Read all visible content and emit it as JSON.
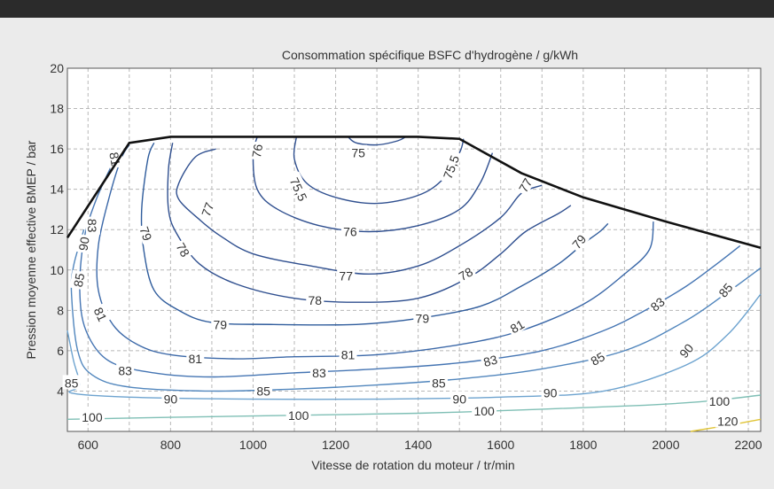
{
  "chart_data": {
    "type": "contour",
    "title": "Consommation spécifique BSFC d'hydrogène / g/kWh",
    "xlabel": "Vitesse de rotation du moteur / tr/min",
    "ylabel": "Pression moyenne effective BMEP / bar",
    "xlim": [
      550,
      2230
    ],
    "ylim": [
      2,
      20
    ],
    "x_ticks": [
      600,
      800,
      1000,
      1200,
      1400,
      1600,
      1800,
      2000,
      2200
    ],
    "y_ticks": [
      4,
      6,
      8,
      10,
      12,
      14,
      16,
      18,
      20
    ],
    "grid": true,
    "full_load_curve": [
      [
        550,
        11.6
      ],
      [
        700,
        16.3
      ],
      [
        800,
        16.6
      ],
      [
        1400,
        16.6
      ],
      [
        1500,
        16.5
      ],
      [
        1650,
        14.8
      ],
      [
        1800,
        13.6
      ],
      [
        2000,
        12.4
      ],
      [
        2230,
        11.1
      ]
    ],
    "contours": [
      {
        "value": "75",
        "label": "75",
        "color": "#2f4f8f",
        "points": [
          [
            1230,
            16.6
          ],
          [
            1250,
            16.3
          ],
          [
            1300,
            16.2
          ],
          [
            1350,
            16.4
          ],
          [
            1370,
            16.6
          ]
        ],
        "label_at": [
          1255,
          15.8
        ],
        "label_angle": 0
      },
      {
        "value": "75.5",
        "label": "75,5",
        "color": "#2f4f8f",
        "points": [
          [
            1105,
            16.6
          ],
          [
            1100,
            15.5
          ],
          [
            1130,
            14.3
          ],
          [
            1200,
            13.6
          ],
          [
            1300,
            13.3
          ],
          [
            1400,
            13.7
          ],
          [
            1460,
            14.5
          ],
          [
            1500,
            15.8
          ],
          [
            1510,
            16.5
          ]
        ],
        "label_at": [
          1110,
          14.0
        ],
        "label_angle": 65,
        "label2_at": [
          1480,
          15.1
        ],
        "label2_angle": -70
      },
      {
        "value": "76",
        "label": "76",
        "color": "#2f4f8f",
        "points": [
          [
            1010,
            16.6
          ],
          [
            1000,
            15.7
          ],
          [
            1010,
            14.0
          ],
          [
            1060,
            13.0
          ],
          [
            1160,
            12.2
          ],
          [
            1280,
            11.9
          ],
          [
            1400,
            12.2
          ],
          [
            1500,
            13.0
          ],
          [
            1550,
            14.3
          ],
          [
            1580,
            15.8
          ]
        ],
        "label_at": [
          1010,
          15.9
        ],
        "label_angle": -80,
        "label2_at": [
          1235,
          11.9
        ],
        "label2_angle": 0
      },
      {
        "value": "77",
        "label": "77",
        "color": "#2f4f8f",
        "points": [
          [
            910,
            16.0
          ],
          [
            860,
            15.6
          ],
          [
            820,
            14.3
          ],
          [
            820,
            13.5
          ],
          [
            870,
            12.5
          ],
          [
            920,
            11.7
          ],
          [
            1000,
            10.8
          ],
          [
            1140,
            10.2
          ],
          [
            1280,
            9.8
          ],
          [
            1400,
            10.2
          ],
          [
            1500,
            11.2
          ],
          [
            1600,
            12.6
          ],
          [
            1650,
            13.8
          ],
          [
            1700,
            14.2
          ]
        ],
        "label_at": [
          890,
          13.0
        ],
        "label_angle": -70,
        "label2_at": [
          1225,
          9.7
        ],
        "label2_angle": 0,
        "label3_at": [
          1660,
          14.2
        ],
        "label3_angle": -60
      },
      {
        "value": "78",
        "label": "78",
        "color": "#2f4f8f",
        "points": [
          [
            805,
            16.3
          ],
          [
            795,
            15.0
          ],
          [
            795,
            13.0
          ],
          [
            815,
            11.8
          ],
          [
            870,
            10.3
          ],
          [
            960,
            9.3
          ],
          [
            1100,
            8.6
          ],
          [
            1250,
            8.4
          ],
          [
            1400,
            8.6
          ],
          [
            1520,
            9.6
          ],
          [
            1600,
            10.8
          ],
          [
            1660,
            11.9
          ],
          [
            1740,
            12.8
          ],
          [
            1770,
            13.2
          ]
        ],
        "label_at": [
          830,
          11.0
        ],
        "label_angle": 60,
        "label2_at": [
          1150,
          8.5
        ],
        "label2_angle": 0,
        "label3_at": [
          1515,
          9.8
        ],
        "label3_angle": -30
      },
      {
        "value": "79",
        "label": "79",
        "color": "#2f5c9c",
        "points": [
          [
            760,
            16.3
          ],
          [
            745,
            15.5
          ],
          [
            730,
            13.0
          ],
          [
            735,
            11.0
          ],
          [
            760,
            9.0
          ],
          [
            820,
            8.0
          ],
          [
            900,
            7.4
          ],
          [
            1050,
            7.3
          ],
          [
            1250,
            7.3
          ],
          [
            1400,
            7.6
          ],
          [
            1550,
            8.2
          ],
          [
            1650,
            9.2
          ],
          [
            1740,
            10.3
          ],
          [
            1800,
            11.3
          ],
          [
            1840,
            11.9
          ],
          [
            1860,
            12.3
          ]
        ],
        "label_at": [
          740,
          11.8
        ],
        "label_angle": 70,
        "label2_at": [
          920,
          7.3
        ],
        "label2_angle": 0,
        "label3_at": [
          1410,
          7.6
        ],
        "label3_angle": 0,
        "label4_at": [
          1790,
          11.4
        ],
        "label4_angle": -50
      },
      {
        "value": "81",
        "label": "81",
        "color": "#3b68a8",
        "points": [
          [
            700,
            16.2
          ],
          [
            680,
            15.5
          ],
          [
            650,
            13.5
          ],
          [
            625,
            11.2
          ],
          [
            625,
            9.0
          ],
          [
            660,
            7.3
          ],
          [
            720,
            6.3
          ],
          [
            800,
            5.8
          ],
          [
            950,
            5.6
          ],
          [
            1100,
            5.7
          ],
          [
            1300,
            5.8
          ],
          [
            1500,
            6.3
          ],
          [
            1650,
            7.0
          ],
          [
            1800,
            8.3
          ],
          [
            1900,
            9.8
          ],
          [
            1960,
            11.0
          ],
          [
            1970,
            12.4
          ]
        ],
        "label_at": [
          665,
          15.5
        ],
        "label_angle": 80,
        "label2_at": [
          630,
          7.8
        ],
        "label2_angle": 65,
        "label3_at": [
          860,
          5.6
        ],
        "label3_angle": 0,
        "label4_at": [
          1230,
          5.8
        ],
        "label4_angle": 0,
        "label5_at": [
          1640,
          7.2
        ],
        "label5_angle": -30
      },
      {
        "value": "83",
        "label": "83",
        "color": "#4575b3",
        "points": [
          [
            660,
            15.3
          ],
          [
            620,
            13.5
          ],
          [
            590,
            11.5
          ],
          [
            580,
            9.0
          ],
          [
            595,
            7.0
          ],
          [
            650,
            5.5
          ],
          [
            760,
            4.9
          ],
          [
            900,
            4.7
          ],
          [
            1100,
            4.9
          ],
          [
            1300,
            5.1
          ],
          [
            1500,
            5.4
          ],
          [
            1700,
            6.0
          ],
          [
            1850,
            7.0
          ],
          [
            1950,
            8.0
          ],
          [
            2050,
            9.2
          ],
          [
            2130,
            10.4
          ],
          [
            2180,
            11.2
          ]
        ],
        "label_at": [
          610,
          12.2
        ],
        "label_angle": 90,
        "label2_at": [
          690,
          5.0
        ],
        "label2_angle": 0,
        "label3_at": [
          1160,
          4.9
        ],
        "label3_angle": 0,
        "label4_at": [
          1575,
          5.5
        ],
        "label4_angle": -15,
        "label5_at": [
          1980,
          8.3
        ],
        "label5_angle": -40
      },
      {
        "value": "85",
        "label": "85",
        "color": "#5186bd",
        "points": [
          [
            590,
            12.0
          ],
          [
            565,
            10.2
          ],
          [
            560,
            8.8
          ],
          [
            575,
            6.0
          ],
          [
            610,
            4.8
          ],
          [
            700,
            4.2
          ],
          [
            900,
            4.0
          ],
          [
            1100,
            4.1
          ],
          [
            1300,
            4.3
          ],
          [
            1500,
            4.6
          ],
          [
            1700,
            5.1
          ],
          [
            1900,
            6.0
          ],
          [
            2050,
            7.5
          ],
          [
            2150,
            8.9
          ],
          [
            2230,
            10.1
          ]
        ],
        "label_at": [
          578,
          9.5
        ],
        "label_angle": -80,
        "label2_at": [
          560,
          4.4
        ],
        "label2_angle": 0,
        "label3_at": [
          1025,
          4.0
        ],
        "label3_angle": 0,
        "label4_at": [
          1450,
          4.4
        ],
        "label4_angle": 0,
        "label5_at": [
          1835,
          5.6
        ],
        "label5_angle": -30,
        "label6_at": [
          2145,
          9.0
        ],
        "label6_angle": -50
      },
      {
        "value": "90",
        "label": "90",
        "color": "#6da3cf",
        "points": [
          [
            550,
            7.0
          ],
          [
            565,
            5.5
          ],
          [
            580,
            4.3
          ],
          [
            560,
            3.9
          ],
          [
            700,
            3.7
          ],
          [
            1000,
            3.6
          ],
          [
            1300,
            3.6
          ],
          [
            1600,
            3.7
          ],
          [
            1850,
            4.0
          ],
          [
            2050,
            5.3
          ],
          [
            2150,
            6.8
          ],
          [
            2230,
            8.8
          ]
        ],
        "label_at": [
          1500,
          3.6
        ],
        "label_angle": 0,
        "label2_at": [
          800,
          3.6
        ],
        "label2_angle": 0,
        "label3_at": [
          1720,
          3.9
        ],
        "label3_angle": 0,
        "label4_at": [
          2050,
          6.0
        ],
        "label4_angle": -50,
        "label5_at": [
          590,
          11.3
        ],
        "label5_angle": -80
      },
      {
        "value": "100",
        "label": "100",
        "color": "#7fbfb5",
        "points": [
          [
            550,
            2.6
          ],
          [
            800,
            2.7
          ],
          [
            1100,
            2.8
          ],
          [
            1400,
            2.9
          ],
          [
            1700,
            3.1
          ],
          [
            1950,
            3.3
          ],
          [
            2100,
            3.5
          ],
          [
            2230,
            3.8
          ]
        ],
        "label_at": [
          610,
          2.7
        ],
        "label_angle": 0,
        "label2_at": [
          1110,
          2.8
        ],
        "label2_angle": 0,
        "label3_at": [
          1560,
          3.0
        ],
        "label3_angle": 0,
        "label4_at": [
          2130,
          3.5
        ],
        "label4_angle": 0
      },
      {
        "value": "120",
        "label": "120",
        "color": "#e0c436",
        "points": [
          [
            2060,
            2.0
          ],
          [
            2150,
            2.3
          ],
          [
            2230,
            2.6
          ]
        ],
        "label_at": [
          2150,
          2.5
        ],
        "label_angle": 0
      }
    ]
  },
  "colors": {
    "background": "#ebebeb",
    "plot_background": "#ffffff",
    "top_bar": "#2b2b2b",
    "grid": "#b8b8b8",
    "full_load": "#111111"
  }
}
